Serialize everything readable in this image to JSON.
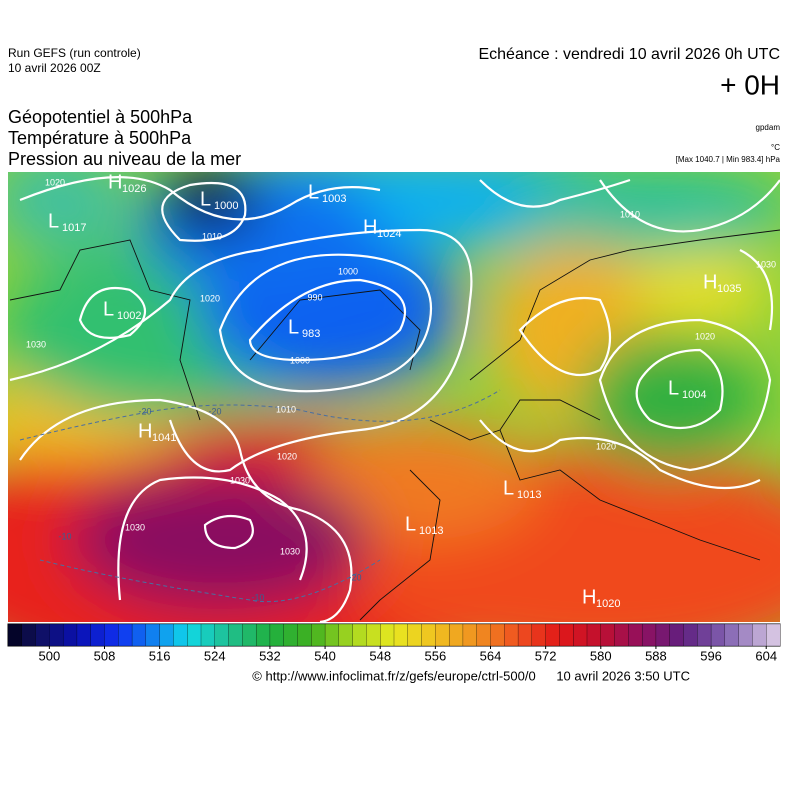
{
  "header": {
    "run": "Run GEFS (run controle)",
    "run_date": "10 avril 2026 00Z",
    "echeance": "Echéance : vendredi 10 avril 2026 0h UTC",
    "lead": "+ 0H",
    "fields": [
      "Géopotentiel à 500hPa",
      "Température à 500hPa",
      "Pression au niveau de la mer"
    ],
    "units": [
      "gpdam",
      "°C"
    ],
    "extremes": "[Max 1040.7 | Min 983.4] hPa"
  },
  "pressure_centers": [
    {
      "letter": "H",
      "value": 1026
    },
    {
      "letter": "L",
      "value": 1000
    },
    {
      "letter": "L",
      "value": 1003
    },
    {
      "letter": "H",
      "value": 1024
    },
    {
      "letter": "L",
      "value": 1017
    },
    {
      "letter": "L",
      "value": 1002
    },
    {
      "letter": "L",
      "value": 983
    },
    {
      "letter": "H",
      "value": 1041
    },
    {
      "letter": "L",
      "value": 1004
    },
    {
      "letter": "H",
      "value": 1035
    },
    {
      "letter": "L",
      "value": 1013
    },
    {
      "letter": "L",
      "value": 1013
    },
    {
      "letter": "H",
      "value": 1020
    }
  ],
  "isobar_labels": [
    1020,
    1010,
    1000,
    990,
    1000,
    1020,
    1030,
    1010,
    1020,
    1030,
    1030,
    1030,
    1020,
    1020,
    1030,
    1010
  ],
  "temperature_labels": [
    -20,
    -20,
    -10,
    -10,
    -20
  ],
  "colorbar": {
    "range": [
      494,
      606
    ],
    "step": 2,
    "ticks": [
      500,
      508,
      516,
      524,
      532,
      540,
      548,
      556,
      564,
      572,
      580,
      588,
      596,
      604
    ],
    "stops": [
      {
        "value": 494,
        "color": "#000018"
      },
      {
        "value": 498,
        "color": "#10105a"
      },
      {
        "value": 504,
        "color": "#0a10b0"
      },
      {
        "value": 510,
        "color": "#1030f0"
      },
      {
        "value": 516,
        "color": "#1090f0"
      },
      {
        "value": 520,
        "color": "#10d8e8"
      },
      {
        "value": 526,
        "color": "#20c090"
      },
      {
        "value": 532,
        "color": "#20b040"
      },
      {
        "value": 538,
        "color": "#40b020"
      },
      {
        "value": 544,
        "color": "#a8d820"
      },
      {
        "value": 550,
        "color": "#e8e820"
      },
      {
        "value": 556,
        "color": "#f0c020"
      },
      {
        "value": 562,
        "color": "#f09020"
      },
      {
        "value": 568,
        "color": "#f05020"
      },
      {
        "value": 574,
        "color": "#e01818"
      },
      {
        "value": 580,
        "color": "#c01030"
      },
      {
        "value": 586,
        "color": "#901060"
      },
      {
        "value": 592,
        "color": "#602080"
      },
      {
        "value": 598,
        "color": "#8060b0"
      },
      {
        "value": 606,
        "color": "#e0d0e8"
      }
    ]
  },
  "footer": {
    "source": "© http://www.infoclimat.fr/z/gefs/europe/ctrl-500/0",
    "created": "10 avril 2026  3:50 UTC"
  }
}
